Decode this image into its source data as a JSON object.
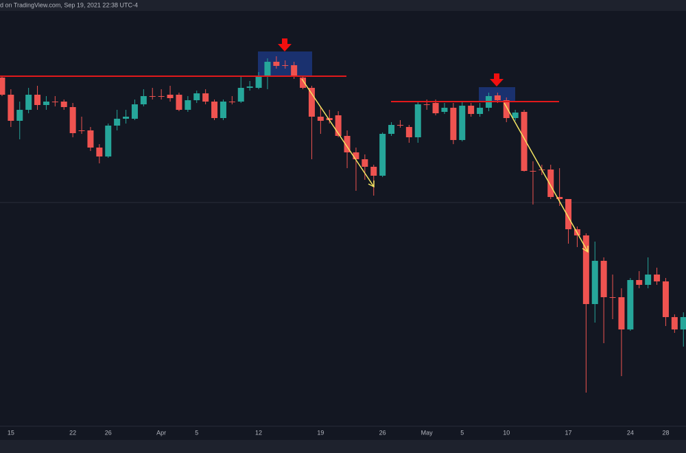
{
  "header": {
    "text": "d on TradingView.com, Sep 19, 2021 22:38 UTC-4"
  },
  "chart_data": {
    "type": "candlestick",
    "up_color": "#26a69a",
    "down_color": "#ef5350",
    "ylim": [
      80,
      684
    ],
    "categories": [
      null,
      "15",
      null,
      null,
      null,
      null,
      null,
      null,
      "22",
      null,
      null,
      null,
      "26",
      null,
      null,
      null,
      null,
      null,
      "Apr",
      null,
      null,
      null,
      "5",
      null,
      null,
      null,
      null,
      null,
      null,
      "12",
      null,
      null,
      null,
      null,
      null,
      null,
      "19",
      null,
      null,
      null,
      null,
      null,
      null,
      "26",
      null,
      null,
      null,
      null,
      "May",
      null,
      null,
      null,
      "5",
      null,
      null,
      null,
      null,
      "10",
      null,
      null,
      null,
      null,
      null,
      null,
      "17",
      null,
      null,
      null,
      null,
      null,
      null,
      "24",
      null,
      null,
      null,
      "28",
      null,
      null
    ],
    "open": [
      587,
      562,
      524,
      540,
      562,
      547,
      552,
      552,
      544,
      510,
      510,
      485,
      472,
      517,
      527,
      527,
      548,
      560,
      560,
      562,
      562,
      540,
      554,
      564,
      552,
      528,
      552,
      552,
      572,
      572,
      590,
      610,
      605,
      605,
      587,
      572,
      530,
      528,
      532,
      502,
      478,
      468,
      457,
      444,
      505,
      518,
      515,
      500,
      548,
      550,
      537,
      543,
      496,
      546,
      534,
      543,
      561,
      554,
      528,
      537,
      451,
      453,
      453,
      413,
      410,
      366,
      357,
      257,
      320,
      267,
      267,
      220,
      292,
      285,
      300,
      290,
      238,
      220
    ],
    "high": [
      590,
      570,
      552,
      572,
      575,
      560,
      560,
      555,
      550,
      530,
      515,
      490,
      520,
      540,
      540,
      555,
      570,
      572,
      570,
      575,
      565,
      560,
      568,
      570,
      555,
      555,
      560,
      588,
      582,
      595,
      615,
      618,
      612,
      610,
      590,
      575,
      545,
      540,
      538,
      510,
      485,
      475,
      460,
      507,
      522,
      525,
      518,
      552,
      555,
      555,
      550,
      550,
      552,
      550,
      550,
      565,
      565,
      558,
      540,
      540,
      465,
      460,
      460,
      455,
      410,
      370,
      360,
      348,
      325,
      300,
      280,
      295,
      305,
      325,
      310,
      295,
      242,
      245
    ],
    "low": [
      560,
      515,
      497,
      535,
      540,
      540,
      545,
      540,
      500,
      505,
      480,
      462,
      470,
      510,
      520,
      525,
      545,
      555,
      555,
      552,
      538,
      537,
      550,
      548,
      525,
      525,
      548,
      550,
      568,
      570,
      570,
      600,
      600,
      585,
      570,
      468,
      505,
      520,
      500,
      455,
      422,
      438,
      415,
      442,
      502,
      514,
      492,
      492,
      540,
      532,
      534,
      490,
      494,
      530,
      530,
      538,
      550,
      522,
      524,
      450,
      402,
      445,
      410,
      400,
      345,
      340,
      128,
      230,
      200,
      235,
      152,
      218,
      280,
      280,
      285,
      225,
      215,
      195
    ],
    "close": [
      562,
      524,
      540,
      562,
      547,
      552,
      551,
      544,
      506,
      509,
      485,
      472,
      517,
      527,
      530,
      548,
      560,
      559,
      559,
      557,
      540,
      554,
      564,
      552,
      528,
      552,
      551,
      572,
      574,
      588,
      610,
      604,
      604,
      590,
      572,
      530,
      524,
      525,
      502,
      478,
      468,
      457,
      444,
      505,
      518,
      517,
      500,
      548,
      547,
      535,
      543,
      496,
      546,
      534,
      543,
      560,
      554,
      528,
      536,
      451,
      450,
      452,
      413,
      410,
      366,
      357,
      257,
      320,
      267,
      266,
      220,
      292,
      285,
      300,
      290,
      238,
      220,
      238
    ]
  }
}
